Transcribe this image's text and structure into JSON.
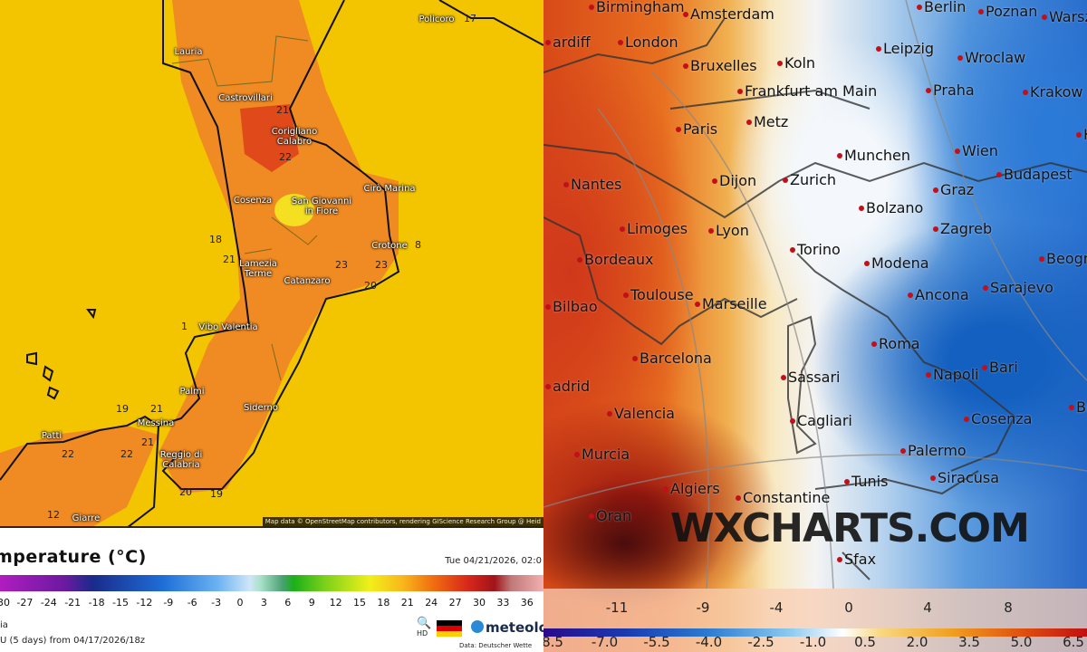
{
  "left_panel": {
    "cities": [
      "Policoro",
      "Lauria",
      "Castrovillari",
      "Corigliano\nCalabro",
      "Cosenza",
      "San Giovanni\nin Fiore",
      "Cirò Marina",
      "Lamezia\nTerme",
      "Crotone",
      "Catanzaro",
      "Vibo Valentia",
      "Palmi",
      "Messina",
      "Siderno",
      "Patti",
      "Reggio di\nCalabria",
      "Giarre"
    ],
    "contour_labels": [
      "17",
      "21",
      "22",
      "18",
      "21",
      "23",
      "23",
      "20",
      "8",
      "1",
      "19",
      "21",
      "21",
      "22",
      "22",
      "20",
      "19",
      "12"
    ],
    "attribution": "Map data © OpenStreetMap contributors, rendering GIScience Research Group @ Heid",
    "title": "mperature (°C)",
    "datetime": "Tue 04/21/2026, 02:0",
    "legend_ticks": [
      "30",
      "-27",
      "-24",
      "-21",
      "-18",
      "-15",
      "-12",
      "-9",
      "-6",
      "-3",
      "0",
      "3",
      "6",
      "9",
      "12",
      "15",
      "18",
      "21",
      "24",
      "27",
      "30",
      "33",
      "36"
    ],
    "region": "ia",
    "model_run": "U (5 days) from 04/17/2026/18z",
    "hd_label": "HD",
    "brand": "meteolo",
    "data_source": "Data: Deutscher Wette",
    "colors": {
      "sea": "#f3c400",
      "land_warm": "#f07a1a",
      "hot": "#e0441a"
    }
  },
  "right_panel": {
    "cities": [
      "Birmingham",
      "London",
      "Amsterdam",
      "Berlin",
      "Poznan",
      "Warszawa",
      "ardiff",
      "Bruxelles",
      "Koln",
      "Leipzig",
      "Wroclaw",
      "Frankfurt am Main",
      "Praha",
      "Krakow",
      "Paris",
      "Metz",
      "Kosic",
      "Munchen",
      "Wien",
      "Budapest",
      "Nantes",
      "Dijon",
      "Zurich",
      "Graz",
      "Bolzano",
      "Zagreb",
      "Limoges",
      "Lyon",
      "Torino",
      "Modena",
      "Beograd",
      "Bordeaux",
      "Toulouse",
      "Marseille",
      "Ancona",
      "Sarajevo",
      "Bilbao",
      "Roma",
      "Barcelona",
      "Napoli",
      "Bari",
      "Sassari",
      "adrid",
      "Valencia",
      "Cagliari",
      "Cosenza",
      "Bristi",
      "Murcia",
      "Palermo",
      "Siracusa",
      "Algiers",
      "Constantine",
      "Tunis",
      "Oran",
      "Sfax"
    ],
    "watermark": "WXCHARTS.COM",
    "legend_top": [
      "-11",
      "-9",
      "-4",
      "0",
      "4",
      "8"
    ],
    "legend_bottom": [
      "8.5",
      "-7.0",
      "-5.5",
      "-4.0",
      "-2.5",
      "-1.0",
      "0.5",
      "2.0",
      "3.5",
      "5.0",
      "6.5"
    ],
    "colors": {
      "warm": "#d84a18",
      "neutral": "#f4f4f4",
      "cold": "#2a6ac8"
    }
  }
}
